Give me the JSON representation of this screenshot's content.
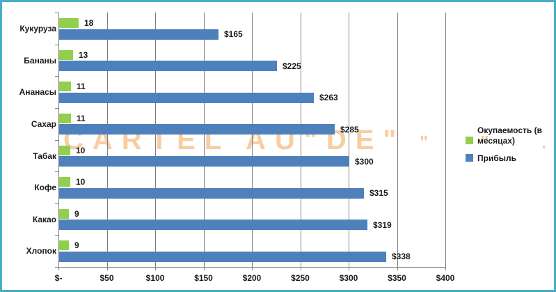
{
  "frame": {
    "border_color": "#4AACC5",
    "background": "#FFFFFF"
  },
  "chart_data": {
    "type": "bar",
    "orientation": "horizontal",
    "title": "",
    "categories": [
      "Кукуруза",
      "Бананы",
      "Ананасы",
      "Сахар",
      "Табак",
      "Кофе",
      "Какао",
      "Хлопок"
    ],
    "series": [
      {
        "name": "Окупаемость (в месяцах)",
        "color": "#92CF4D",
        "values": [
          18,
          13,
          11,
          11,
          10,
          10,
          9,
          9
        ],
        "data_labels": [
          "18",
          "13",
          "11",
          "11",
          "10",
          "10",
          "9",
          "9"
        ]
      },
      {
        "name": "Прибыль",
        "color": "#4E81BC",
        "values": [
          165,
          225,
          263,
          285,
          300,
          315,
          319,
          338
        ],
        "data_labels": [
          "$165",
          "$225",
          "$263",
          "$285",
          "$300",
          "$315",
          "$319",
          "$338"
        ]
      }
    ],
    "x_axis": {
      "min": 0,
      "max": 400,
      "tick_interval": 50,
      "tick_labels": [
        "$-",
        "$50",
        "$100",
        "$150",
        "$200",
        "$250",
        "$300",
        "$350",
        "$400"
      ],
      "grid": true
    },
    "legend": {
      "position": "right",
      "entries": [
        {
          "label": "Окупаемость (в\nмесяцах)",
          "color": "#92CF4D"
        },
        {
          "label": "Прибыль",
          "color": "#4E81BC"
        }
      ]
    },
    "gridline_color": "#7F7F7F",
    "axis_color": "#7F7F7F",
    "text_color": "#1a1a1a"
  },
  "watermark": {
    "text": "CARTEL AU\"DE\"",
    "fragments_right": "\" \" .",
    "color": "#F8CDA2"
  }
}
